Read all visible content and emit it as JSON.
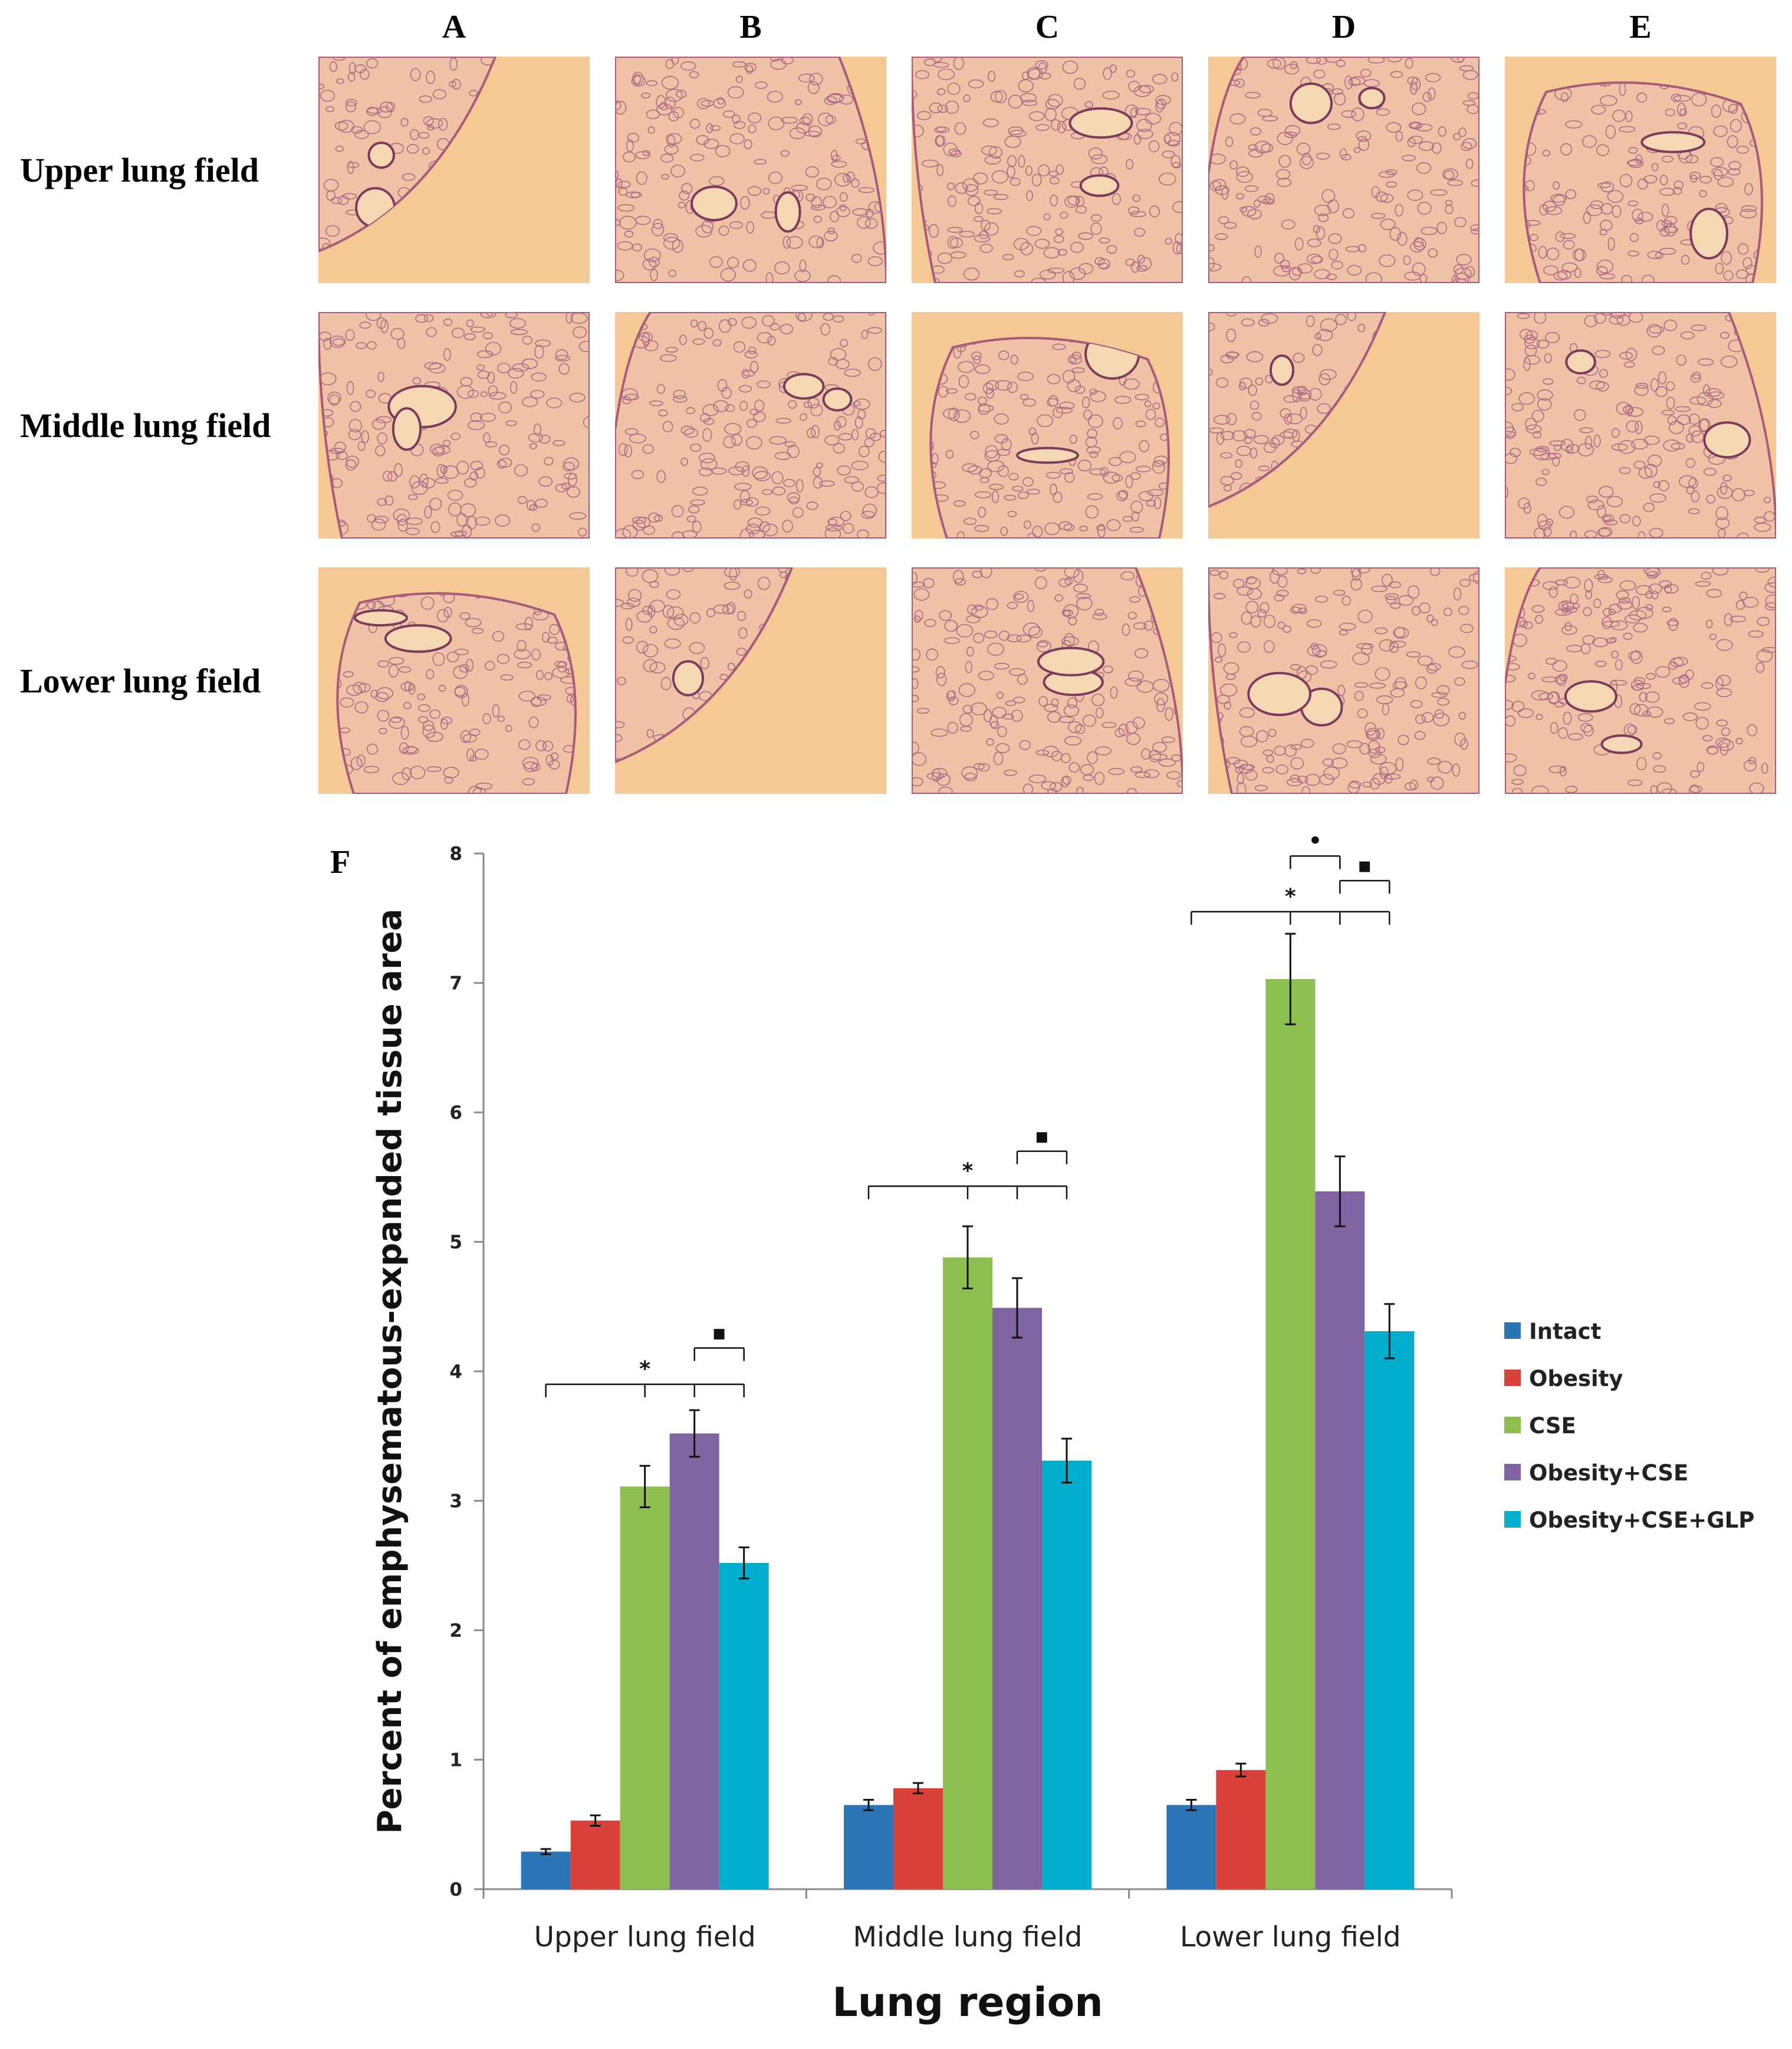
{
  "panels": {
    "columns": [
      "A",
      "B",
      "C",
      "D",
      "E"
    ],
    "rows": [
      "Upper lung field",
      "Middle lung field",
      "Lower lung field"
    ]
  },
  "panel_f_label": "F",
  "chart_data": {
    "type": "bar",
    "title": "",
    "xlabel": "Lung region",
    "ylabel": "Percent of emphysematous-expanded  tissue area",
    "ylim": [
      0,
      8
    ],
    "yticks": [
      0,
      1,
      2,
      3,
      4,
      5,
      6,
      7,
      8
    ],
    "grid": false,
    "legend_position": "right",
    "categories": [
      "Upper lung field",
      "Middle lung field",
      "Lower lung field"
    ],
    "series": [
      {
        "name": "Intact",
        "color": "#2E75B6",
        "values": [
          0.29,
          0.65,
          0.65
        ],
        "errors": [
          0.02,
          0.04,
          0.04
        ]
      },
      {
        "name": "Obesity",
        "color": "#D9413B",
        "values": [
          0.53,
          0.78,
          0.92
        ],
        "errors": [
          0.04,
          0.04,
          0.05
        ]
      },
      {
        "name": "CSE",
        "color": "#8DBE4F",
        "values": [
          3.11,
          4.88,
          7.03
        ],
        "errors": [
          0.16,
          0.24,
          0.35
        ]
      },
      {
        "name": "Obesity+CSE",
        "color": "#8064A2",
        "values": [
          3.52,
          4.49,
          5.39
        ],
        "errors": [
          0.18,
          0.23,
          0.27
        ]
      },
      {
        "name": "Obesity+CSE+GLP",
        "color": "#00AECB",
        "values": [
          2.52,
          3.31,
          4.31
        ],
        "errors": [
          0.12,
          0.17,
          0.21
        ]
      }
    ],
    "annotations": [
      {
        "category": 0,
        "type": "bracket",
        "from": 0,
        "to": 4,
        "ticks": [
          2,
          3
        ],
        "level": 3.9,
        "label": "*"
      },
      {
        "category": 0,
        "type": "bracket",
        "from": 3,
        "to": 4,
        "level": 4.18,
        "label": "▪"
      },
      {
        "category": 1,
        "type": "bracket",
        "from": 0,
        "to": 4,
        "ticks": [
          2,
          3
        ],
        "level": 5.43,
        "label": "*"
      },
      {
        "category": 1,
        "type": "bracket",
        "from": 3,
        "to": 4,
        "level": 5.7,
        "label": "▪"
      },
      {
        "category": 2,
        "type": "bracket",
        "from": 0,
        "to": 4,
        "ticks": [
          2,
          3
        ],
        "level": 7.55,
        "label": "*"
      },
      {
        "category": 2,
        "type": "bracket",
        "from": 2,
        "to": 3,
        "level": 7.98,
        "label": "•"
      },
      {
        "category": 2,
        "type": "bracket",
        "from": 3,
        "to": 4,
        "level": 7.79,
        "label": "▪"
      }
    ]
  }
}
